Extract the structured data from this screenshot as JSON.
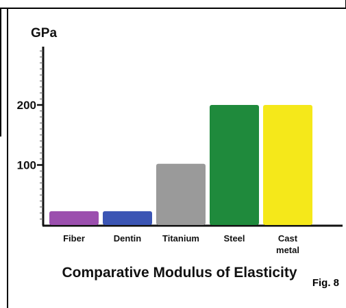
{
  "chart_data": {
    "type": "bar",
    "title": "Comparative Modulus of Elasticity",
    "ylabel": "GPa",
    "xlabel": "",
    "ylim": [
      0,
      300
    ],
    "y_ticks": [
      100,
      200
    ],
    "categories": [
      "Fiber",
      "Dentin",
      "Titanium",
      "Steel",
      "Cast metal"
    ],
    "category_lines": [
      [
        "Fiber"
      ],
      [
        "Dentin"
      ],
      [
        "Titanium"
      ],
      [
        "Steel"
      ],
      [
        "Cast",
        "metal"
      ]
    ],
    "values": [
      23,
      23,
      102,
      200,
      200
    ],
    "colors": [
      "#9b4fae",
      "#3b55b4",
      "#9a9a9a",
      "#1f8a3c",
      "#f5e81a"
    ],
    "legend": "none",
    "grid": false
  },
  "figure_label": "Fig. 8"
}
